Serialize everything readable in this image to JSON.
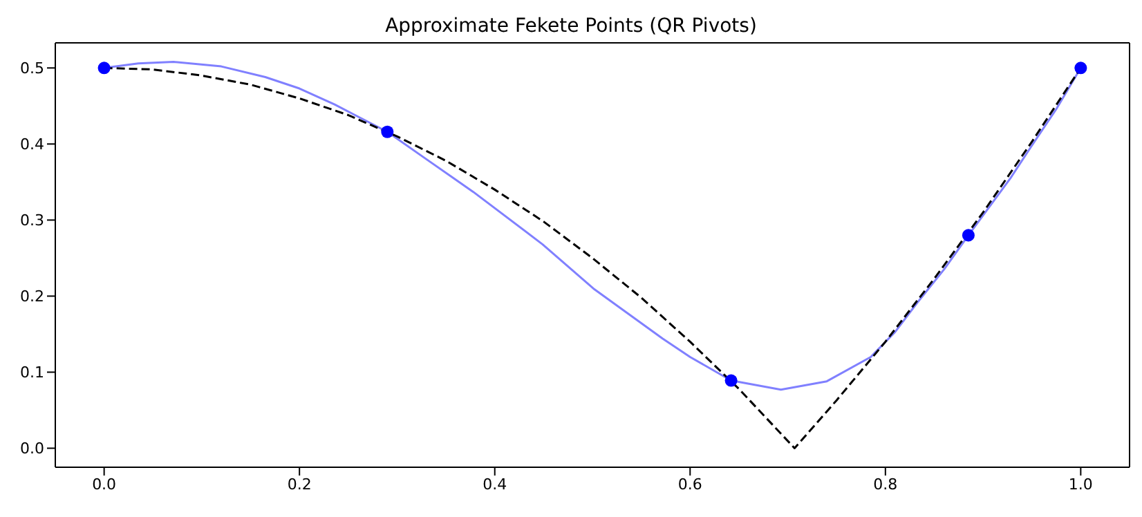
{
  "chart_data": {
    "type": "line",
    "title": "Approximate Fekete Points (QR Pivots)",
    "xlim": [
      -0.05,
      1.05
    ],
    "xticks": [
      {
        "value": 0,
        "label": "0.0"
      },
      {
        "value": 0.2,
        "label": "0.2"
      },
      {
        "value": 0.4,
        "label": "0.4"
      },
      {
        "value": 0.6,
        "label": "0.6"
      },
      {
        "value": 0.8,
        "label": "0.8"
      },
      {
        "value": 1,
        "label": "1.0"
      }
    ],
    "ylim": [
      -0.025,
      0.533
    ],
    "yticks": [
      {
        "value": 0,
        "label": "0.0"
      },
      {
        "value": 0.1,
        "label": "0.1"
      },
      {
        "value": 0.2,
        "label": "0.2"
      },
      {
        "value": 0.3,
        "label": "0.3"
      },
      {
        "value": 0.4,
        "label": "0.4"
      },
      {
        "value": 0.5,
        "label": "0.5"
      }
    ],
    "grid": false,
    "legend": false,
    "series": [
      {
        "type": "line",
        "color": "#8080ff",
        "line_style": "solid",
        "marker": "none",
        "x": [
          0,
          0.035,
          0.071,
          0.12,
          0.165,
          0.2,
          0.236,
          0.29,
          0.33,
          0.378,
          0.449,
          0.501,
          0.572,
          0.6,
          0.642,
          0.693,
          0.74,
          0.785,
          0.81,
          0.833,
          0.86,
          0.885,
          0.928,
          0.95,
          0.975,
          1
        ],
        "values": [
          0.5,
          0.506,
          0.508,
          0.502,
          0.488,
          0.473,
          0.452,
          0.416,
          0.38,
          0.337,
          0.268,
          0.21,
          0.144,
          0.12,
          0.089,
          0.077,
          0.088,
          0.12,
          0.153,
          0.192,
          0.235,
          0.28,
          0.355,
          0.398,
          0.446,
          0.5
        ]
      },
      {
        "type": "line",
        "color": "#000000",
        "line_style": "dashed",
        "marker": "none",
        "x": [
          0,
          0.05,
          0.1,
          0.15,
          0.2,
          0.25,
          0.3,
          0.35,
          0.4,
          0.45,
          0.5,
          0.55,
          0.6,
          0.65,
          0.707,
          0.75,
          0.8,
          0.85,
          0.9,
          0.95,
          1
        ],
        "values": [
          0.5,
          0.498,
          0.49,
          0.478,
          0.46,
          0.438,
          0.41,
          0.378,
          0.34,
          0.298,
          0.25,
          0.198,
          0.14,
          0.078,
          0,
          0.063,
          0.14,
          0.223,
          0.31,
          0.403,
          0.5
        ]
      },
      {
        "type": "scatter",
        "color": "#0000ff",
        "marker": "circle",
        "x": [
          0,
          0.29,
          0.642,
          0.885,
          1
        ],
        "values": [
          0.5,
          0.416,
          0.089,
          0.28,
          0.5
        ]
      }
    ]
  }
}
